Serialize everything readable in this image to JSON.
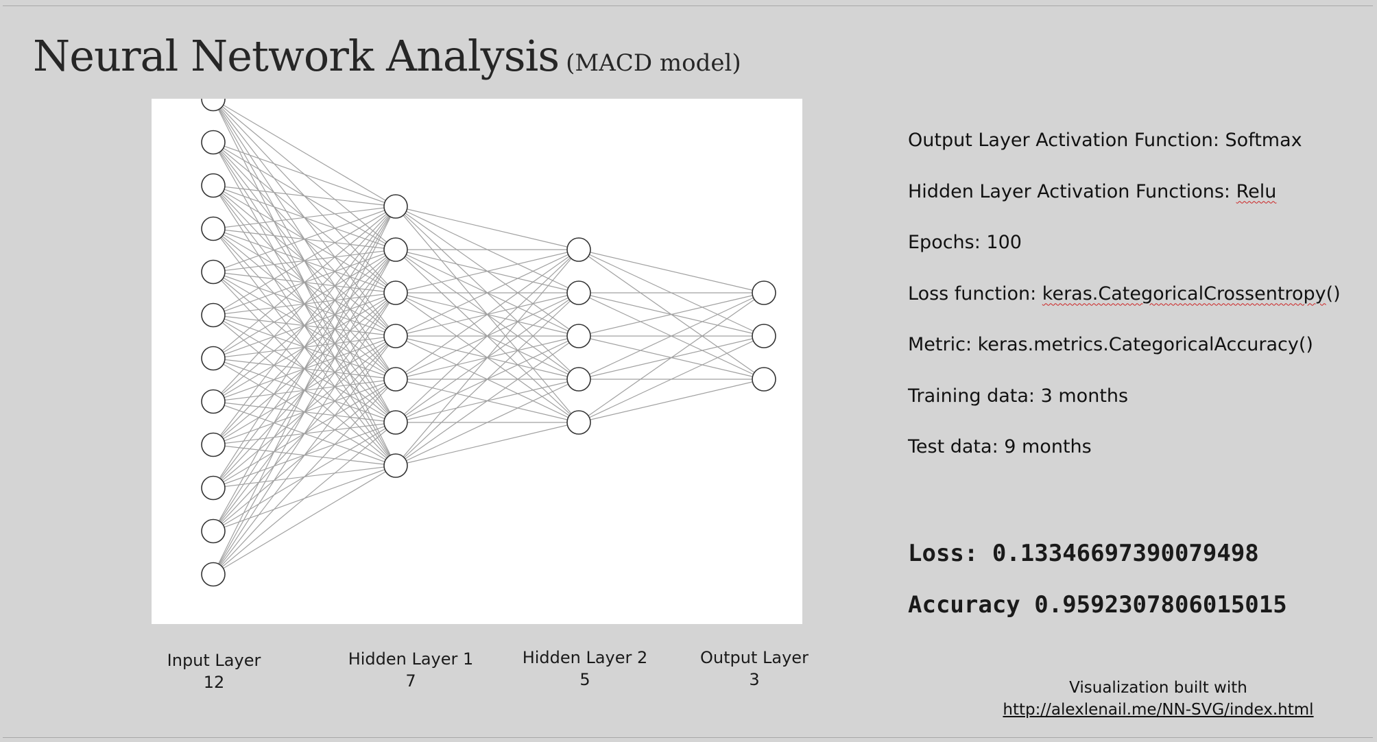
{
  "title": {
    "main": "Neural Network Analysis",
    "sub": "(MACD model)"
  },
  "network": {
    "layers": [
      {
        "name": "Input Layer",
        "count": "12",
        "nodes": 12
      },
      {
        "name": "Hidden Layer 1",
        "count": "7",
        "nodes": 7
      },
      {
        "name": "Hidden Layer 2",
        "count": "5",
        "nodes": 5
      },
      {
        "name": "Output Layer",
        "count": "3",
        "nodes": 3
      }
    ],
    "edge_color": "#a0a0a0",
    "node_stroke": "#333333",
    "node_fill": "#ffffff"
  },
  "info": {
    "output_activation": {
      "label": "Output Layer Activation Function: ",
      "value": "Softmax"
    },
    "hidden_activation": {
      "label": "Hidden Layer Activation Functions: ",
      "value": "Relu"
    },
    "epochs": {
      "label": "Epochs: ",
      "value": "100"
    },
    "loss_function": {
      "label": "Loss function: ",
      "value": "keras.CategoricalCrossentropy",
      "suffix": "()"
    },
    "metric": {
      "label": "Metric: ",
      "value": "keras.metrics.CategoricalAccuracy()"
    },
    "training_data": {
      "label": "Training data: ",
      "value": "3 months"
    },
    "test_data": {
      "label": "Test data: ",
      "value": "9 months"
    }
  },
  "results": {
    "loss": {
      "label": "Loss:",
      "value": "0.13346697390079498"
    },
    "accuracy": {
      "label": "Accuracy",
      "value": "0.9592307806015015"
    }
  },
  "credit": {
    "text": "Visualization built with",
    "link": "http://alexlenail.me/NN-SVG/index.html"
  }
}
